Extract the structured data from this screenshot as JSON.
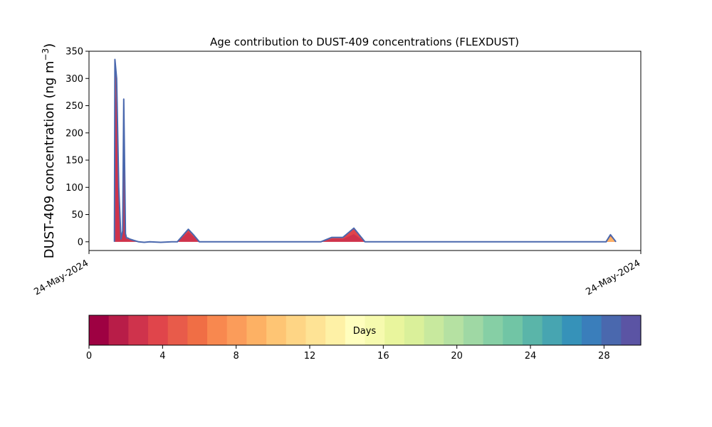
{
  "chart_data": {
    "type": "area",
    "title": "Age contribution to DUST-409 concentrations (FLEXDUST)",
    "ylabel_main": "DUST-409 concentration (ng m",
    "ylabel_sup": "−3",
    "ylabel_close": ")",
    "xlabel": "",
    "x_tick_labels": [
      "24-May-2024",
      "24-May-2024"
    ],
    "ylim": [
      -16,
      350
    ],
    "y_ticks": [
      0,
      50,
      100,
      150,
      200,
      250,
      300,
      350
    ],
    "x_domain": [
      0,
      1
    ],
    "grid": false,
    "legend": "none",
    "series_total": {
      "x": [
        0.046,
        0.047,
        0.05,
        0.054,
        0.058,
        0.061,
        0.063,
        0.065,
        0.066,
        0.068,
        0.07,
        0.074,
        0.08,
        0.09,
        0.1,
        0.11,
        0.13,
        0.15,
        0.16,
        0.18,
        0.19,
        0.2,
        0.21,
        0.22,
        0.235,
        0.25,
        0.28,
        0.31,
        0.34,
        0.37,
        0.4,
        0.42,
        0.44,
        0.46,
        0.48,
        0.5,
        0.52,
        0.6,
        0.7,
        0.8,
        0.9,
        0.92,
        0.937,
        0.945,
        0.955
      ],
      "y": [
        0,
        335,
        300,
        100,
        5,
        20,
        262,
        100,
        15,
        7,
        7,
        5,
        3,
        0,
        -1,
        0,
        -1,
        0,
        0,
        23,
        12,
        0,
        0,
        0,
        0,
        0,
        0,
        0,
        0,
        0,
        0,
        0,
        8,
        8,
        25,
        0,
        0,
        0,
        0,
        0,
        0,
        0,
        0,
        13,
        0
      ]
    },
    "series_inner": {
      "x": [
        0.046,
        0.047,
        0.05,
        0.054,
        0.058,
        0.061,
        0.063,
        0.065,
        0.066,
        0.068,
        0.07,
        0.074,
        0.08,
        0.09,
        0.1,
        0.11,
        0.13,
        0.15,
        0.16,
        0.18,
        0.19,
        0.2,
        0.42,
        0.44,
        0.46,
        0.48,
        0.5,
        0.52
      ],
      "y": [
        0,
        280,
        250,
        80,
        3,
        15,
        200,
        80,
        10,
        5,
        5,
        3,
        2,
        0,
        -1,
        0,
        -1,
        0,
        0,
        18,
        9,
        0,
        0,
        5,
        5,
        14,
        0,
        0
      ]
    },
    "late_peak": {
      "x": [
        0.937,
        0.945,
        0.955
      ],
      "y": [
        0,
        10,
        0
      ]
    }
  },
  "colorbar": {
    "label": "Days",
    "min": 0,
    "max": 30,
    "ticks": [
      0,
      4,
      8,
      12,
      16,
      20,
      24,
      28
    ],
    "colors": [
      "#9e0142",
      "#b81d48",
      "#cf334c",
      "#e0454b",
      "#e85b4a",
      "#f06e45",
      "#f8884f",
      "#fb9c5a",
      "#fdb164",
      "#fec574",
      "#fed585",
      "#fee395",
      "#fef1a6",
      "#fffebe",
      "#f6faae",
      "#e9f59d",
      "#daf09a",
      "#c8e99e",
      "#b5e1a2",
      "#9fd8a4",
      "#86cfa5",
      "#71c5a5",
      "#5ab5a9",
      "#47a5b1",
      "#3692b9",
      "#3a7ebb",
      "#4a68ae",
      "#5b54a4"
    ]
  },
  "colors": {
    "outline": "#4a68ae",
    "fill_outer": "#e0454b",
    "fill_inner": "#cf334c",
    "late_fill": "#fdb164"
  }
}
